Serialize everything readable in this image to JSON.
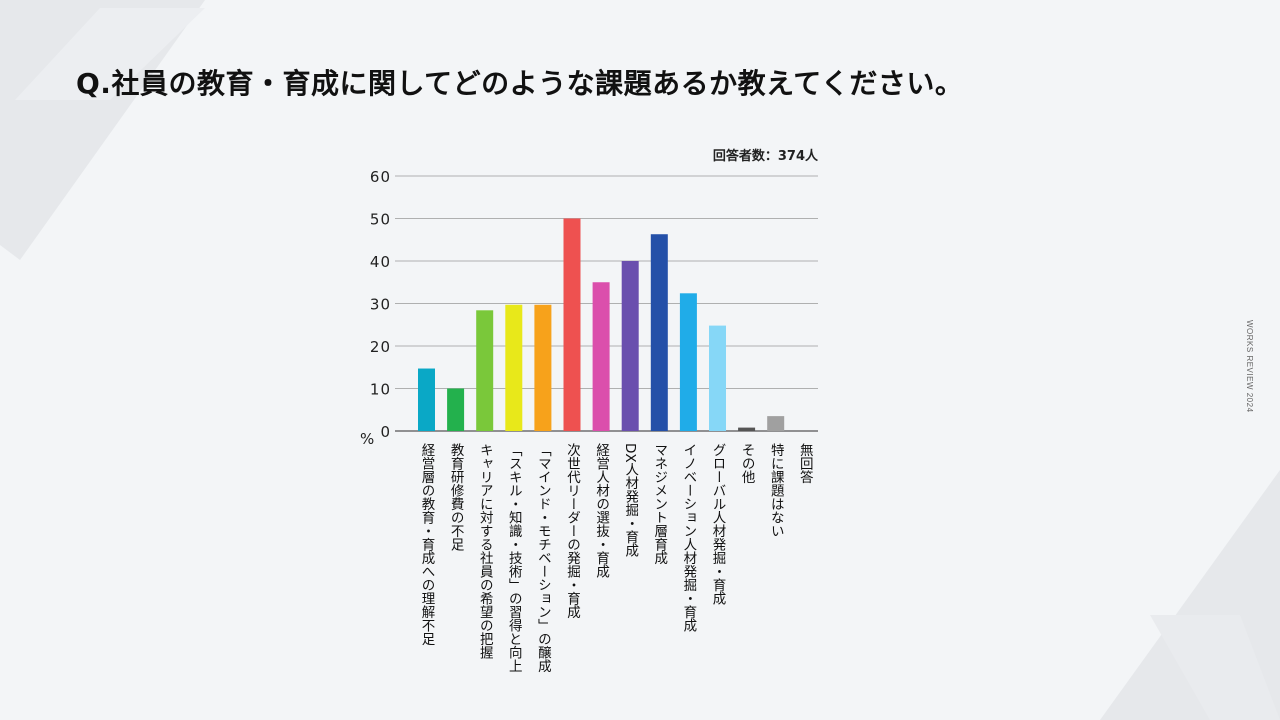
{
  "title": "Q.社員の教育・育成に関してどのような課題あるか教えてください。",
  "side_text": "WORKS REVIEW 2024",
  "chart_data": {
    "type": "bar",
    "respondents_label": "回答者数：374人",
    "y_unit": "%",
    "ylim": [
      0,
      60
    ],
    "yticks": [
      0,
      10,
      20,
      30,
      40,
      50,
      60
    ],
    "grid": true,
    "categories": [
      "経営層の教育・育成への理解不足",
      "教育研修費の不足",
      "キャリアに対する社員の希望の把握",
      "「スキル・知識・技術」の習得と向上",
      "「マインド・モチベーション」の醸成",
      "次世代リーダーの発掘・育成",
      "経営人材の選抜・育成",
      "DX人材発掘・育成",
      "マネジメント層育成",
      "イノベーション人材発掘・育成",
      "グローバル人材発掘・育成",
      "その他",
      "特に課題はない",
      "無回答"
    ],
    "values": [
      14.7,
      10.0,
      28.4,
      29.7,
      29.7,
      50.0,
      35.0,
      40.0,
      46.3,
      32.4,
      24.8,
      0.8,
      3.5,
      0.0
    ],
    "colors": [
      "#0aa8c6",
      "#23b14d",
      "#7ac83a",
      "#e8e81a",
      "#f7a21b",
      "#ee5150",
      "#db4fac",
      "#6a4fae",
      "#2450a8",
      "#20ace8",
      "#86d7f7",
      "#555555",
      "#a0a0a0",
      "#cccccc"
    ]
  }
}
